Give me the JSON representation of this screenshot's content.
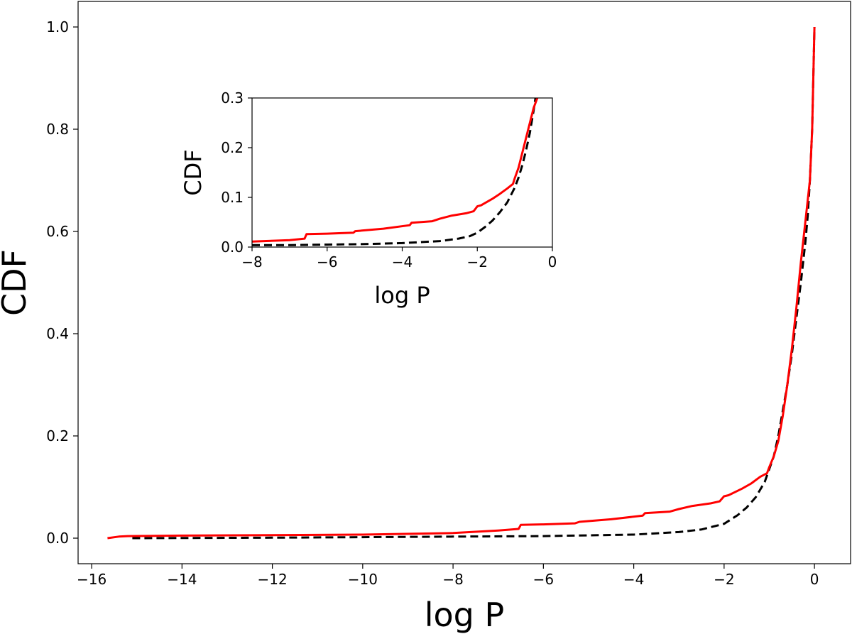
{
  "chart_data": [
    {
      "type": "line",
      "title": "",
      "xlabel": "log P",
      "ylabel": "CDF",
      "xlim": [
        -16.3,
        0.8
      ],
      "ylim": [
        -0.05,
        1.05
      ],
      "xticks": [
        -16,
        -14,
        -12,
        -10,
        -8,
        -6,
        -4,
        -2,
        0
      ],
      "xtick_labels": [
        "−16",
        "−14",
        "−12",
        "−10",
        "−8",
        "−6",
        "−4",
        "−2",
        "0"
      ],
      "yticks": [
        0.0,
        0.2,
        0.4,
        0.6,
        0.8,
        1.0
      ],
      "ytick_labels": [
        "0.0",
        "0.2",
        "0.4",
        "0.6",
        "0.8",
        "1.0"
      ],
      "grid": false,
      "legend": "none",
      "series": [
        {
          "style": "dashed",
          "color": "#000000",
          "x": [
            -15.1,
            -12,
            -10,
            -8,
            -6,
            -4,
            -3,
            -2.5,
            -2,
            -1.7,
            -1.5,
            -1.3,
            -1.1,
            -0.9,
            -0.8,
            -0.7,
            -0.6,
            -0.5,
            -0.4,
            -0.3,
            -0.2,
            -0.15,
            -0.1,
            -0.05,
            0.0
          ],
          "y": [
            0.0,
            0.001,
            0.002,
            0.003,
            0.004,
            0.007,
            0.012,
            0.017,
            0.028,
            0.045,
            0.06,
            0.08,
            0.11,
            0.16,
            0.2,
            0.25,
            0.3,
            0.36,
            0.43,
            0.5,
            0.58,
            0.63,
            0.7,
            0.8,
            1.0
          ]
        },
        {
          "style": "solid",
          "color": "#ff0000",
          "x": [
            -15.65,
            -15.4,
            -15.2,
            -14,
            -12,
            -10,
            -8,
            -7,
            -6.55,
            -6.5,
            -6.0,
            -5.3,
            -5.2,
            -4.5,
            -3.8,
            -3.75,
            -3.2,
            -3.0,
            -2.7,
            -2.3,
            -2.1,
            -2.0,
            -1.9,
            -1.6,
            -1.4,
            -1.2,
            -1.05,
            -1.0,
            -0.9,
            -0.8,
            -0.7,
            -0.6,
            -0.5,
            -0.4,
            -0.3,
            -0.2,
            -0.1,
            -0.05,
            0.0
          ],
          "y": [
            0.0,
            0.003,
            0.004,
            0.005,
            0.006,
            0.007,
            0.01,
            0.015,
            0.018,
            0.026,
            0.027,
            0.029,
            0.032,
            0.037,
            0.044,
            0.049,
            0.052,
            0.057,
            0.063,
            0.068,
            0.072,
            0.082,
            0.084,
            0.097,
            0.107,
            0.12,
            0.127,
            0.139,
            0.16,
            0.19,
            0.24,
            0.3,
            0.37,
            0.45,
            0.54,
            0.62,
            0.7,
            0.8,
            1.0
          ]
        }
      ]
    },
    {
      "type": "line",
      "title": "",
      "xlabel": "log P",
      "ylabel": "CDF",
      "xlim": [
        -8,
        0
      ],
      "ylim": [
        0,
        0.3
      ],
      "xticks": [
        -8,
        -6,
        -4,
        -2,
        0
      ],
      "xtick_labels": [
        "−8",
        "−6",
        "−4",
        "−2",
        "0"
      ],
      "yticks": [
        0.0,
        0.1,
        0.2,
        0.3
      ],
      "ytick_labels": [
        "0.0",
        "0.1",
        "0.2",
        "0.3"
      ],
      "grid": false,
      "legend": "none",
      "series": [
        {
          "style": "dashed",
          "color": "#000000",
          "x": [
            -8,
            -7,
            -6,
            -5,
            -4,
            -3,
            -2.5,
            -2.2,
            -2.0,
            -1.8,
            -1.6,
            -1.4,
            -1.2,
            -1.0,
            -0.9,
            -0.8,
            -0.7,
            -0.6,
            -0.5,
            -0.45
          ],
          "y": [
            0.004,
            0.004,
            0.005,
            0.006,
            0.008,
            0.012,
            0.017,
            0.022,
            0.029,
            0.04,
            0.053,
            0.07,
            0.09,
            0.12,
            0.14,
            0.165,
            0.195,
            0.23,
            0.275,
            0.3
          ]
        },
        {
          "style": "solid",
          "color": "#ff0000",
          "x": [
            -8,
            -7,
            -6.6,
            -6.55,
            -6.0,
            -5.3,
            -5.25,
            -4.5,
            -3.8,
            -3.75,
            -3.2,
            -3.0,
            -2.7,
            -2.3,
            -2.1,
            -2.0,
            -1.9,
            -1.6,
            -1.4,
            -1.2,
            -1.05,
            -1.0,
            -0.9,
            -0.8,
            -0.7,
            -0.6,
            -0.5,
            -0.4
          ],
          "y": [
            0.011,
            0.014,
            0.017,
            0.026,
            0.027,
            0.029,
            0.032,
            0.037,
            0.044,
            0.049,
            0.052,
            0.057,
            0.063,
            0.068,
            0.072,
            0.082,
            0.084,
            0.097,
            0.107,
            0.118,
            0.127,
            0.139,
            0.16,
            0.19,
            0.22,
            0.25,
            0.28,
            0.3
          ]
        }
      ]
    }
  ]
}
